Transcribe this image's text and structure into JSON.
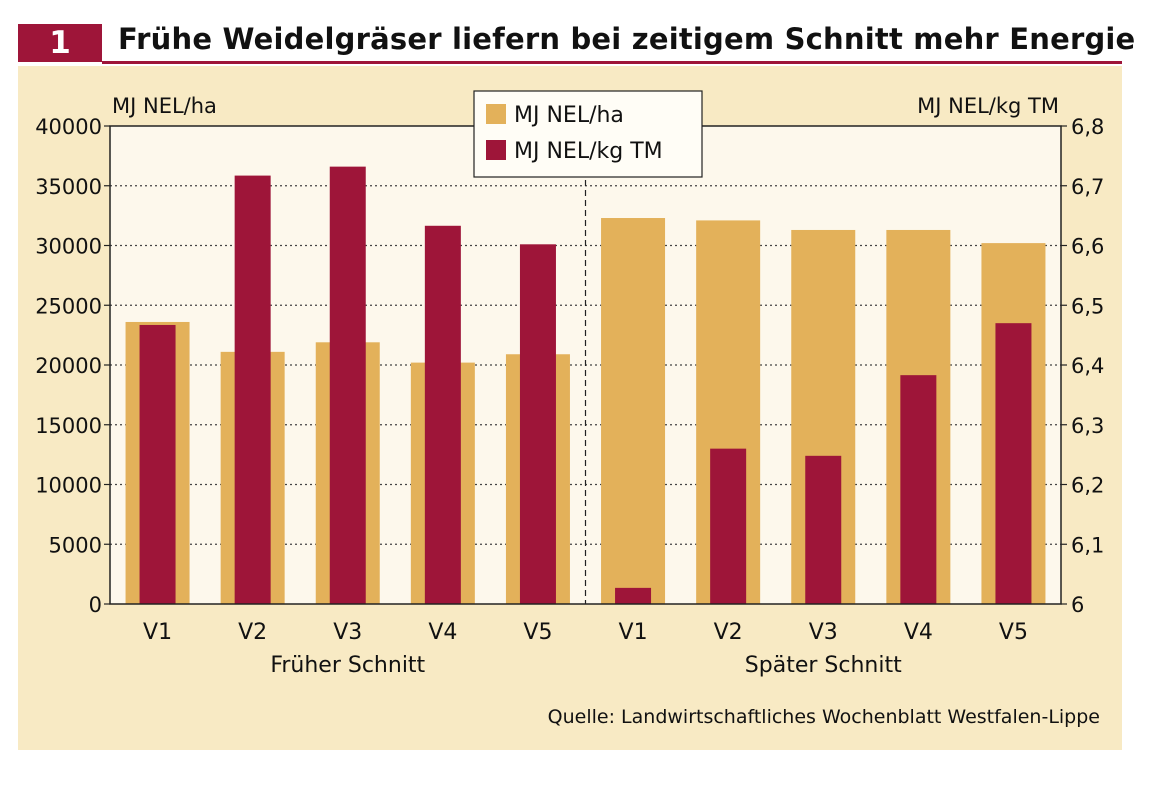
{
  "header": {
    "number": "1",
    "title": "Frühe Weidelgräser liefern bei zeitigem Schnitt mehr Energie"
  },
  "colors": {
    "accent": "#9e1539",
    "series1": "#e3b15a",
    "series2": "#9e1539",
    "panel_bg": "#f8eac4",
    "plot_bg": "#fdf8ec"
  },
  "chart_data": {
    "type": "bar",
    "title": "Frühe Weidelgräser liefern bei zeitigem Schnitt mehr Energie",
    "ylabel_left": "MJ NEL/ha",
    "ylabel_right": "MJ NEL/kg TM",
    "ylim_left": [
      0,
      40000
    ],
    "ylim_right": [
      6.0,
      6.8
    ],
    "yticks_left": [
      0,
      5000,
      10000,
      15000,
      20000,
      25000,
      30000,
      35000,
      40000
    ],
    "ytick_labels_left": [
      "0",
      "5000",
      "10000",
      "15000",
      "20000",
      "25000",
      "30000",
      "35000",
      "40000"
    ],
    "yticks_right": [
      6.0,
      6.1,
      6.2,
      6.3,
      6.4,
      6.5,
      6.6,
      6.7,
      6.8
    ],
    "ytick_labels_right": [
      "6",
      "6,1",
      "6,2",
      "6,3",
      "6,4",
      "6,5",
      "6,6",
      "6,7",
      "6,8"
    ],
    "grid": true,
    "legend_position": "top-center",
    "groups": [
      {
        "name": "Früher Schnitt",
        "categories": [
          "V1",
          "V2",
          "V3",
          "V4",
          "V5"
        ]
      },
      {
        "name": "Später Schnitt",
        "categories": [
          "V1",
          "V2",
          "V3",
          "V4",
          "V5"
        ]
      }
    ],
    "categories": [
      "V1",
      "V2",
      "V3",
      "V4",
      "V5",
      "V1",
      "V2",
      "V3",
      "V4",
      "V5"
    ],
    "series": [
      {
        "name": "MJ NEL/ha",
        "axis": "left",
        "values": [
          23600,
          21100,
          21900,
          20200,
          20900,
          32300,
          32100,
          31300,
          31300,
          30200
        ]
      },
      {
        "name": "MJ NEL/kg TM",
        "axis": "right",
        "values": [
          6.467,
          6.717,
          6.732,
          6.633,
          6.602,
          6.027,
          6.26,
          6.248,
          6.383,
          6.47
        ]
      }
    ],
    "source": "Quelle: Landwirtschaftliches Wochenblatt Westfalen-Lippe"
  }
}
